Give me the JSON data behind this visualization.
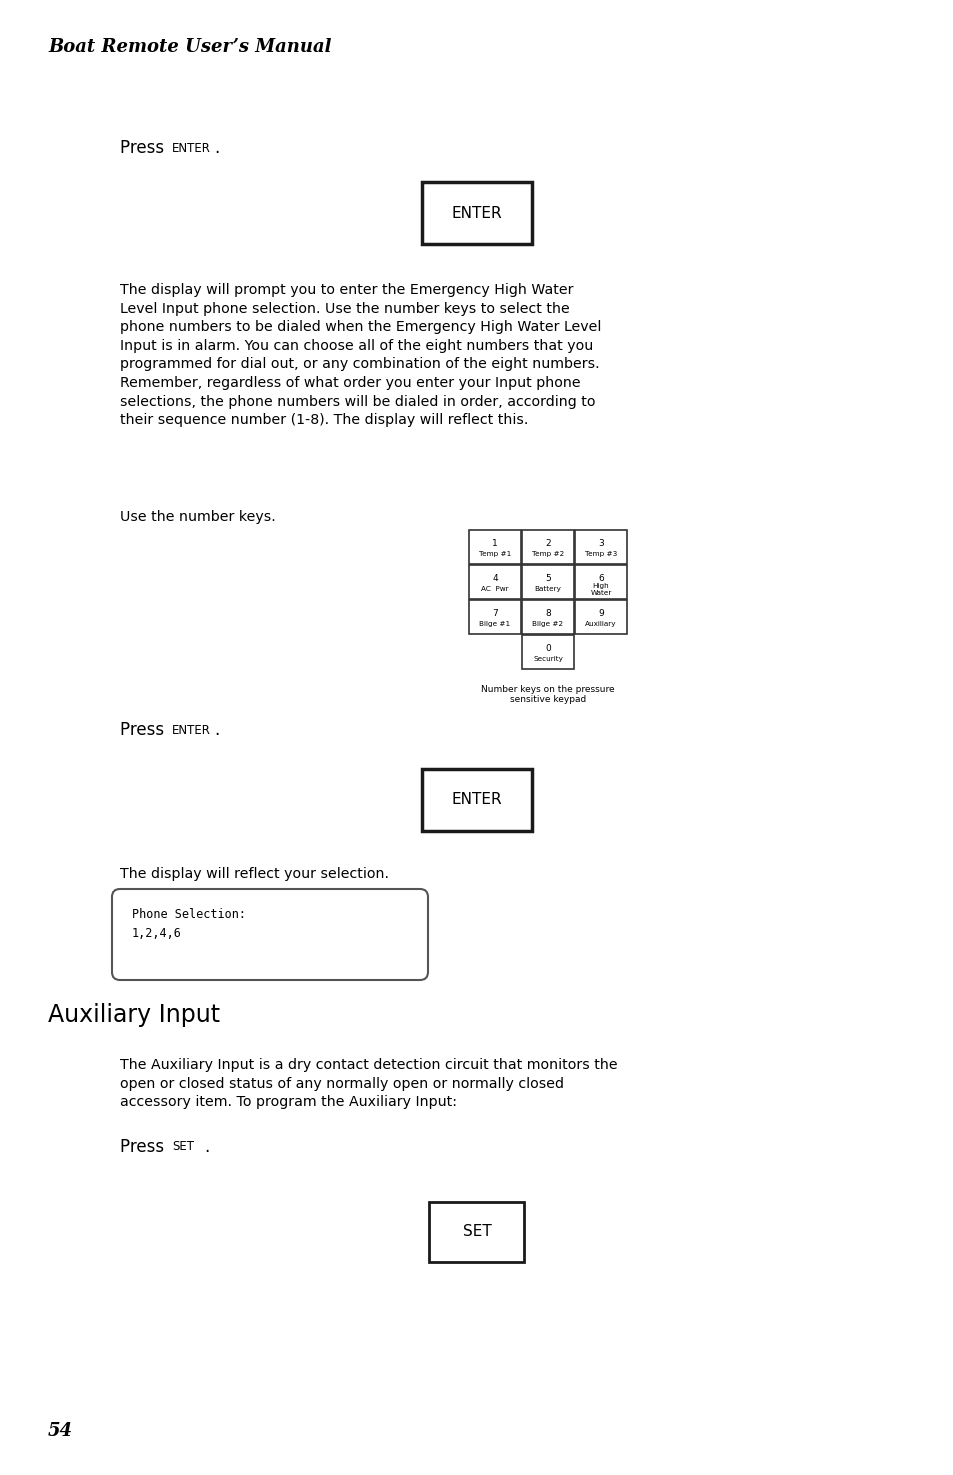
{
  "bg_color": "#ffffff",
  "page_width": 9.54,
  "page_height": 14.75,
  "header_text": "Boat Remote User’s Manual",
  "page_number": "54",
  "body_text_1": "The display will prompt you to enter the Emergency High Water\nLevel Input phone selection. Use the number keys to select the\nphone numbers to be dialed when the Emergency High Water Level\nInput is in alarm. You can choose all of the eight numbers that you\nprogrammed for dial out, or any combination of the eight numbers.\nRemember, regardless of what order you enter your Input phone\nselections, the phone numbers will be dialed in order, according to\ntheir sequence number (1-8). The display will reflect this.",
  "aux_body_text": "The Auxiliary Input is a dry contact detection circuit that monitors the\nopen or closed status of any normally open or normally closed\naccessory item. To program the Auxiliary Input:",
  "keypad_rows": [
    [
      [
        "1",
        "Temp #1"
      ],
      [
        "2",
        "Temp #2"
      ],
      [
        "3",
        "Temp #3"
      ]
    ],
    [
      [
        "4",
        "AC  Pwr"
      ],
      [
        "5",
        "Battery"
      ],
      [
        "6",
        "High\nWater"
      ]
    ],
    [
      [
        "7",
        "Bilge #1"
      ],
      [
        "8",
        "Bilge #2"
      ],
      [
        "9",
        "Auxiliary"
      ]
    ]
  ],
  "keypad_zero": [
    "0",
    "Security"
  ],
  "keypad_caption": "Number keys on the pressure\nsensitive keypad"
}
